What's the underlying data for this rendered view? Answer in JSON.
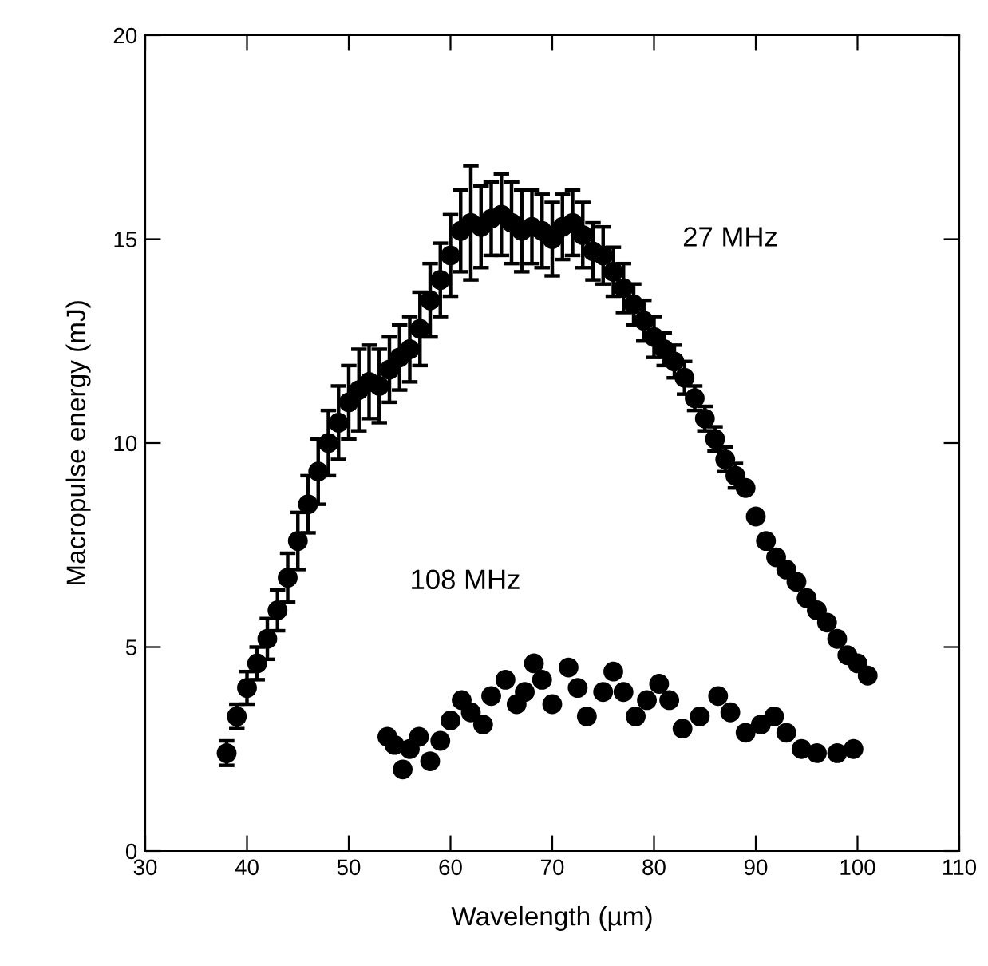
{
  "chart_data": {
    "type": "scatter",
    "xlabel": "Wavelength (µm)",
    "ylabel": "Macropulse energy (mJ)",
    "xlim": [
      30,
      110
    ],
    "xticks": [
      30,
      40,
      50,
      60,
      70,
      80,
      90,
      100,
      110
    ],
    "ylim": [
      0,
      20
    ],
    "yticks": [
      0,
      5,
      10,
      15,
      20
    ],
    "grid": false,
    "legend": false,
    "marker": "circle",
    "series": [
      {
        "name": "27 MHz",
        "color": "#000000",
        "x": [
          38,
          39,
          40,
          41,
          42,
          43,
          44,
          45,
          46,
          47,
          48,
          49,
          50,
          51,
          52,
          53,
          54,
          55,
          56,
          57,
          58,
          59,
          60,
          61,
          62,
          63,
          64,
          65,
          66,
          67,
          68,
          69,
          70,
          71,
          72,
          73,
          74,
          75,
          76,
          77,
          78,
          79,
          80,
          81,
          82,
          83,
          84,
          85,
          86,
          87,
          88,
          89,
          90,
          91,
          92,
          93,
          94,
          95,
          96,
          97,
          98,
          99,
          100,
          101
        ],
        "values": [
          2.4,
          3.3,
          4.0,
          4.6,
          5.2,
          5.9,
          6.7,
          7.6,
          8.5,
          9.3,
          10.0,
          10.5,
          11.0,
          11.3,
          11.5,
          11.4,
          11.8,
          12.1,
          12.3,
          12.8,
          13.5,
          14.0,
          14.6,
          15.2,
          15.4,
          15.3,
          15.5,
          15.6,
          15.4,
          15.2,
          15.3,
          15.2,
          15.0,
          15.3,
          15.4,
          15.1,
          14.7,
          14.6,
          14.2,
          13.8,
          13.4,
          13.0,
          12.6,
          12.3,
          12.0,
          11.6,
          11.1,
          10.6,
          10.1,
          9.6,
          9.2,
          8.9,
          8.2,
          7.6,
          7.2,
          6.9,
          6.6,
          6.2,
          5.9,
          5.6,
          5.2,
          4.8,
          4.6,
          4.3
        ],
        "errors": [
          0.3,
          0.3,
          0.4,
          0.4,
          0.5,
          0.5,
          0.6,
          0.7,
          0.7,
          0.8,
          0.8,
          0.9,
          0.9,
          1.0,
          0.9,
          0.9,
          0.8,
          0.8,
          0.8,
          0.9,
          0.9,
          0.9,
          1.0,
          1.0,
          1.4,
          1.0,
          0.9,
          1.0,
          1.0,
          1.0,
          0.9,
          0.9,
          0.9,
          0.8,
          0.8,
          0.8,
          0.7,
          0.7,
          0.6,
          0.6,
          0.5,
          0.5,
          0.5,
          0.4,
          0.4,
          0.4,
          0.3,
          0.3,
          0.3,
          0.3,
          0.3,
          null,
          null,
          null,
          null,
          null,
          null,
          null,
          null,
          null,
          null,
          null,
          null,
          null
        ]
      },
      {
        "name": "108 MHz",
        "color": "#000000",
        "x": [
          53.8,
          54.5,
          55.3,
          56,
          56.9,
          58,
          59,
          60,
          61.1,
          62,
          63.2,
          64,
          65.4,
          66.5,
          67.3,
          68.2,
          69,
          70,
          71.6,
          72.5,
          73.4,
          75,
          76,
          77,
          78.2,
          79.3,
          80.5,
          81.5,
          82.8,
          84.5,
          86.3,
          87.5,
          89,
          90.5,
          91.8,
          93,
          94.5,
          96,
          98,
          99.6
        ],
        "values": [
          2.8,
          2.6,
          2.0,
          2.5,
          2.8,
          2.2,
          2.7,
          3.2,
          3.7,
          3.4,
          3.1,
          3.8,
          4.2,
          3.6,
          3.9,
          4.6,
          4.2,
          3.6,
          4.5,
          4.0,
          3.3,
          3.9,
          4.4,
          3.9,
          3.3,
          3.7,
          4.1,
          3.7,
          3.0,
          3.3,
          3.8,
          3.4,
          2.9,
          3.1,
          3.3,
          2.9,
          2.5,
          2.4,
          2.4,
          2.5
        ]
      }
    ]
  }
}
